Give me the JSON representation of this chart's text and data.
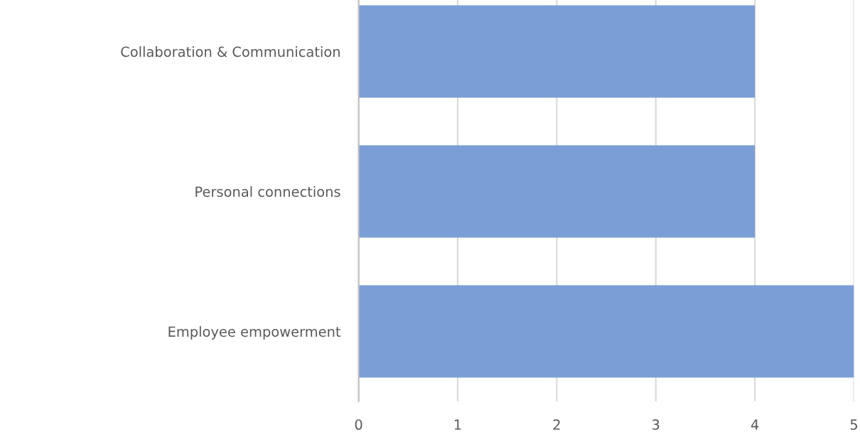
{
  "chart_data": {
    "type": "bar",
    "orientation": "horizontal",
    "categories": [
      "Collaboration & Communication",
      "Personal connections",
      "Employee empowerment"
    ],
    "values": [
      4,
      4,
      5
    ],
    "color": "#7b9ed6",
    "xlim": [
      0,
      5
    ],
    "xticks": [
      0,
      1,
      2,
      3,
      4,
      5
    ],
    "grid": "x",
    "legend": false
  }
}
